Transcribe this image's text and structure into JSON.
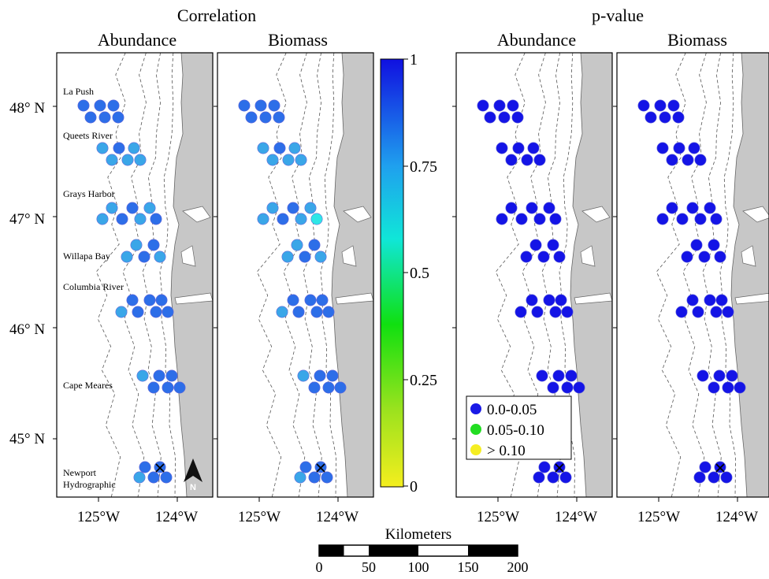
{
  "headings": {
    "correlation": "Correlation",
    "pvalue": "p-value",
    "abundance": "Abundance",
    "biomass": "Biomass"
  },
  "lat_labels": [
    "48° N",
    "47° N",
    "46° N",
    "45° N"
  ],
  "lon_labels": [
    "125°W",
    "124°W"
  ],
  "site_labels": [
    "La Push",
    "Queets River",
    "Grays Harbor",
    "Willapa Bay",
    "Columbia River",
    "Cape Meares",
    "Newport",
    "Hydrographic"
  ],
  "north_arrow_label": "N",
  "colorbar_ticks": [
    "1",
    "0.75",
    "0.5",
    "0.25",
    "0"
  ],
  "legend": [
    {
      "label": "0.0-0.05",
      "color": "#1a1ae6"
    },
    {
      "label": "0.05-0.10",
      "color": "#22dd22"
    },
    {
      "label": "> 0.10",
      "color": "#f5ee22"
    }
  ],
  "scale_bar": {
    "title": "Kilometers",
    "ticks": [
      "0",
      "50",
      "100",
      "150",
      "200"
    ]
  },
  "colors": {
    "land": "#c7c7c7",
    "dot_high": "#1414e6",
    "dot_mid": "#2d6ee8",
    "dot_light": "#3aa6e8",
    "dot_cyan": "#2fe6e6"
  }
}
